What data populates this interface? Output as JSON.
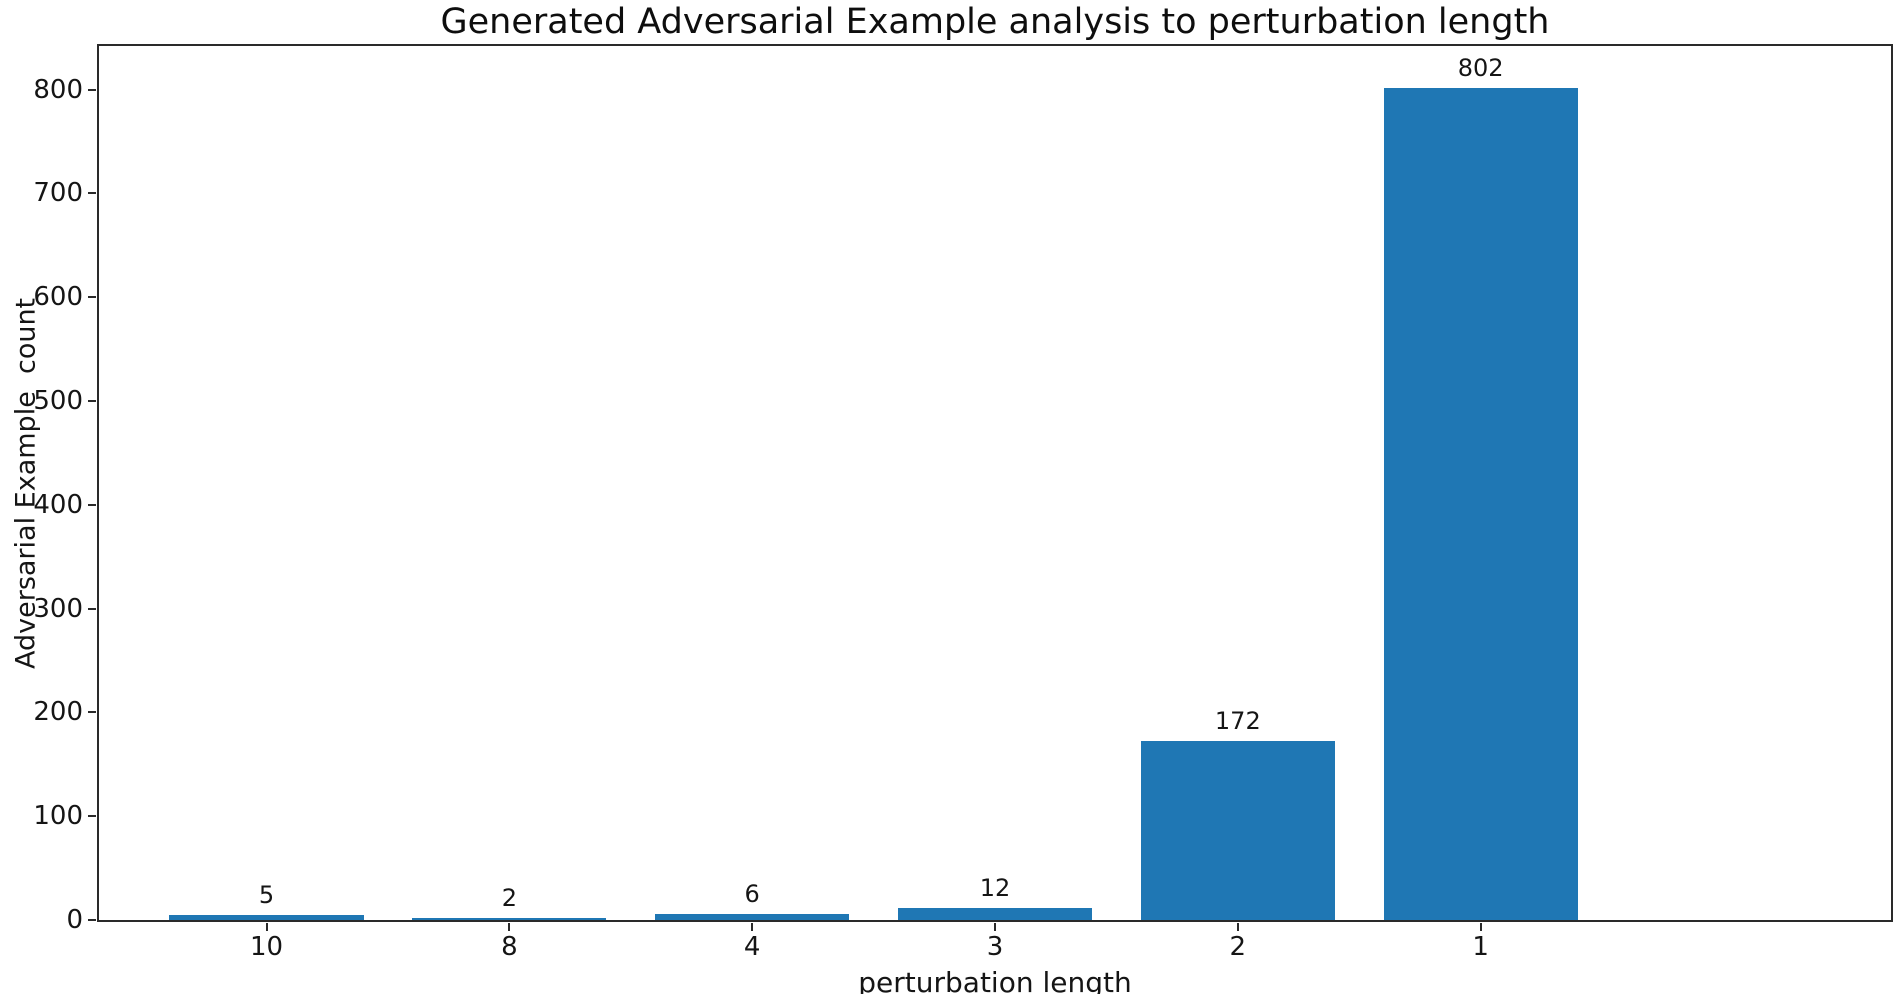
{
  "chart_data": {
    "type": "bar",
    "title": "Generated Adversarial Example analysis to perturbation length",
    "xlabel": "perturbation length",
    "ylabel": "Adversarial Example  count",
    "categories": [
      "10",
      "8",
      "4",
      "3",
      "2",
      "1"
    ],
    "values": [
      5,
      2,
      6,
      12,
      172,
      802
    ],
    "bar_labels": [
      "5",
      "2",
      "6",
      "12",
      "172",
      "802"
    ],
    "yticks": [
      0,
      100,
      200,
      300,
      400,
      500,
      600,
      700,
      800
    ],
    "ylim": [
      0,
      842
    ],
    "bar_color": "#1f77b4",
    "grid": false,
    "legend": "none",
    "background_color": "#ffffff",
    "spine_color": "#2a2a2a"
  }
}
